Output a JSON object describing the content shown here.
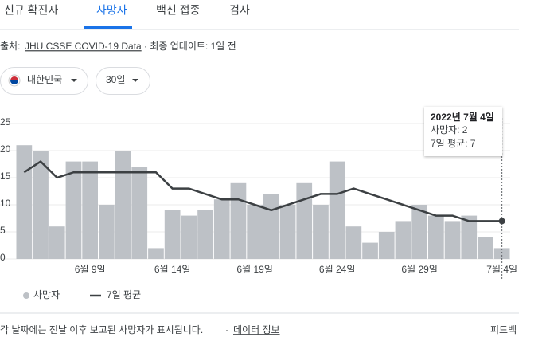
{
  "tabs": [
    "신규 확진자",
    "사망자",
    "백신 접종",
    "검사"
  ],
  "source": {
    "prefix": "출처:",
    "link": "JHU CSSE COVID-19 Data",
    "updated": "· 최종 업데이트: 1일 전"
  },
  "filters": [
    "대한민국",
    "30일"
  ],
  "chart_data": {
    "type": "bar-line",
    "categories": [
      null,
      null,
      null,
      null,
      "6월 9일",
      null,
      null,
      null,
      null,
      "6월 14일",
      null,
      null,
      null,
      null,
      "6월 19일",
      null,
      null,
      null,
      null,
      "6월 24일",
      null,
      null,
      null,
      null,
      "6월 29일",
      null,
      null,
      null,
      null,
      "7월 4일"
    ],
    "series": [
      {
        "name": "사망자",
        "type": "bar",
        "color": "#bdc1c6",
        "values": [
          21,
          20,
          6,
          18,
          18,
          10,
          20,
          17,
          2,
          9,
          8,
          9,
          11,
          14,
          10,
          12,
          10,
          14,
          10,
          18,
          6,
          3,
          5,
          7,
          10,
          8,
          7,
          8,
          4,
          2
        ]
      },
      {
        "name": "7일 평균",
        "type": "line",
        "color": "#3c4043",
        "values": [
          16,
          18,
          15,
          16,
          16,
          16,
          16,
          16,
          16,
          13,
          13,
          12,
          11,
          11,
          10,
          9,
          10,
          11,
          12,
          12,
          13,
          12,
          11,
          10,
          9,
          8,
          8,
          7,
          7,
          7
        ]
      }
    ],
    "ylim": [
      0,
      25
    ],
    "yticks": [
      0,
      5,
      10,
      15,
      20,
      25
    ],
    "grid": true,
    "tooltip": {
      "title": "2022년 7월 4일",
      "lines": [
        "사망자: 2",
        "7일 평균: 7"
      ]
    }
  },
  "footer": {
    "note": "각 날짜에는 전날 이후 보고된 사망자가 표시됩니다.",
    "link": "데이터 정보",
    "feedback": "피드백"
  }
}
